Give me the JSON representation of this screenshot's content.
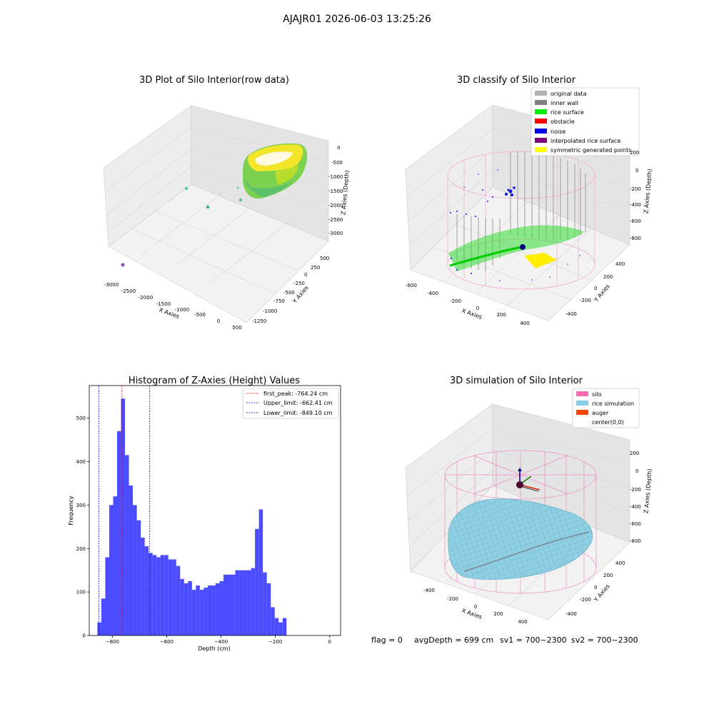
{
  "suptitle": "AJAJR01 2026-06-03 13:25:26",
  "status_line": {
    "flag": "flag = 0",
    "avg_depth": "avgDepth = 699 cm",
    "sv1": "sv1 = 700~2300",
    "sv2": "sv2 = 700~2300"
  },
  "chart_data": [
    {
      "id": "raw",
      "type": "scatter",
      "projection": "3d",
      "title": "3D Plot of Silo Interior(row data)",
      "xlabel": "X Axies",
      "ylabel": "Y Axies",
      "zlabel": "Z Axies (Depth)",
      "xticks": [
        "-3000",
        "-2500",
        "-2000",
        "-1500",
        "-1000",
        "-500",
        "0",
        "500"
      ],
      "yticks": [
        "500",
        "250",
        "0",
        "-250",
        "-500",
        "-750",
        "-1000",
        "-1250"
      ],
      "zticks": [
        "0",
        "-500",
        "-1000",
        "-1500",
        "-2000",
        "-2500",
        "-3000"
      ],
      "xlim": [
        -3100,
        600
      ],
      "ylim": [
        -1350,
        650
      ],
      "zlim": [
        -3300,
        200
      ],
      "outliers": [
        {
          "x": -2600,
          "y": 700,
          "z": -600,
          "color": "#4fc4a8"
        },
        {
          "x": -1800,
          "y": 650,
          "z": -1200,
          "color": "#3aa890"
        },
        {
          "x": -1300,
          "y": 350,
          "z": -900,
          "color": "#7fd6b0"
        },
        {
          "x": -1150,
          "y": 280,
          "z": -1250,
          "color": "#5cc0a0"
        },
        {
          "x": -3000,
          "y": -500,
          "z": -2400,
          "color": "#8e4ba3"
        }
      ],
      "colormap": [
        "#3fb37f",
        "#7cd250",
        "#c5e021",
        "#fde725"
      ]
    },
    {
      "id": "classify",
      "type": "scatter",
      "projection": "3d",
      "title": "3D classify of Silo Interior",
      "xlabel": "X Axies",
      "ylabel": "Y Axies",
      "zlabel": "Z Axies (Depth)",
      "xticks": [
        "-600",
        "-400",
        "-200",
        "0",
        "200",
        "400"
      ],
      "yticks": [
        "400",
        "200",
        "0",
        "-200",
        "-400"
      ],
      "zticks": [
        "200",
        "0",
        "-200",
        "-400",
        "-600",
        "-800"
      ],
      "legend_position": "upper right",
      "legend": [
        {
          "label": "original data",
          "color": "#b0b0b0"
        },
        {
          "label": "inner wall",
          "color": "#808080"
        },
        {
          "label": "rice surface",
          "color": "#00ee00"
        },
        {
          "label": "obstacle",
          "color": "#ff0000"
        },
        {
          "label": "noise",
          "color": "#0000ee"
        },
        {
          "label": "interpolated rice surface",
          "color": "#800080"
        },
        {
          "label": "symmetric generated points",
          "color": "#ffff00"
        }
      ]
    },
    {
      "id": "hist",
      "type": "bar",
      "title": "Histogram of Z-Axies (Height) Values",
      "xlabel": "Depth (cm)",
      "ylabel": "Frequency",
      "xlim": [
        -885,
        40
      ],
      "ylim": [
        0,
        575
      ],
      "xticks": [
        -800,
        -600,
        -400,
        -200,
        0
      ],
      "yticks": [
        0,
        100,
        200,
        300,
        400,
        500
      ],
      "bin_start": -855,
      "bin_width": 14.5,
      "values": [
        30,
        85,
        180,
        300,
        320,
        470,
        545,
        415,
        345,
        300,
        265,
        225,
        205,
        190,
        185,
        180,
        185,
        185,
        175,
        175,
        160,
        130,
        120,
        125,
        105,
        115,
        105,
        110,
        115,
        115,
        120,
        125,
        140,
        140,
        140,
        150,
        150,
        150,
        150,
        155,
        245,
        290,
        145,
        120,
        65,
        40,
        30,
        40
      ],
      "bar_color": "#4b4bff",
      "legend_position": "upper right",
      "lines": [
        {
          "label": "first_peak: -764.24 cm",
          "x": -764.24,
          "color": "#ff0000"
        },
        {
          "label": "Upper_limit: -662.41 cm",
          "x": -662.41,
          "color": "#0000cc"
        },
        {
          "label": "Lower_limit: -849.10 cm",
          "x": -849.1,
          "color": "#0000cc"
        }
      ]
    },
    {
      "id": "sim",
      "type": "area",
      "projection": "3d",
      "title": "3D simulation of Silo Interior",
      "xlabel": "X Axies",
      "ylabel": "Y Axies",
      "zlabel": "Z Axies (Depth)",
      "xticks": [
        "-400",
        "-200",
        "0",
        "200",
        "400"
      ],
      "yticks": [
        "400",
        "200",
        "0",
        "-200",
        "-400"
      ],
      "zticks": [
        "200",
        "0",
        "-200",
        "-400",
        "-600",
        "-800"
      ],
      "legend_position": "upper right",
      "legend": [
        {
          "label": "silo",
          "color": "#ff69b4"
        },
        {
          "label": "rice simulation",
          "color": "#87ceeb"
        },
        {
          "label": "auger",
          "color": "#ff4500"
        },
        {
          "label": "center(0,0)",
          "color": ""
        }
      ]
    }
  ]
}
